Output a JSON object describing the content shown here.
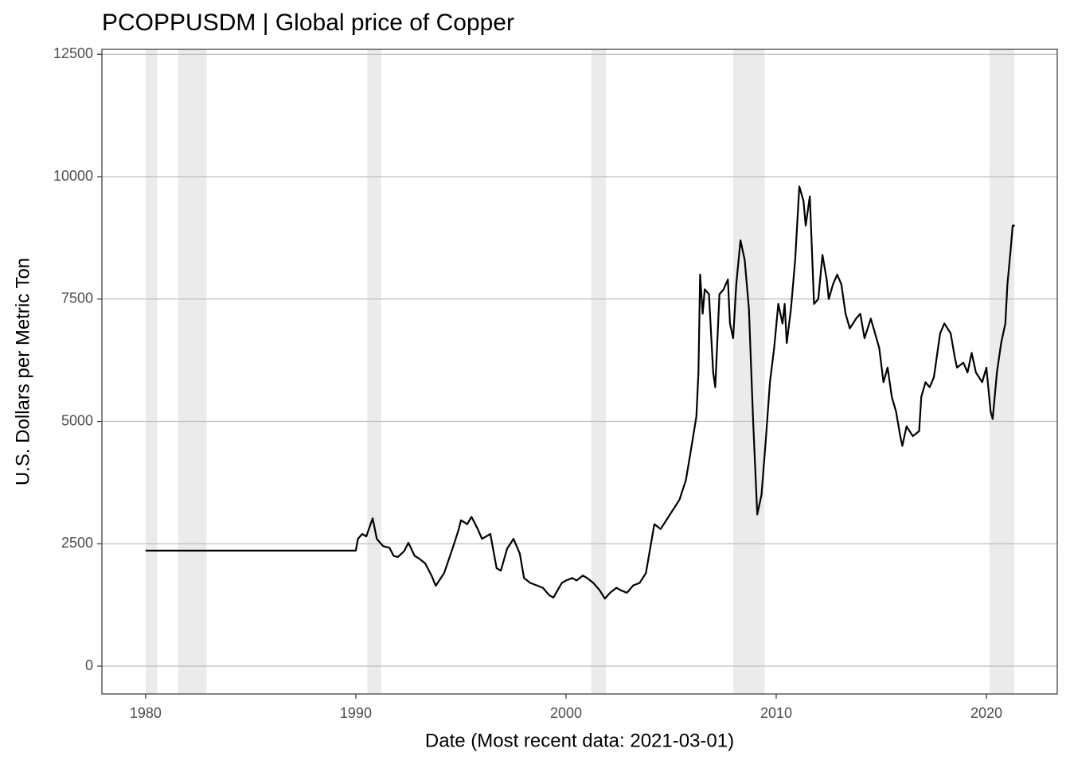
{
  "chart_data": {
    "type": "line",
    "title": "PCOPPUSDM | Global price of Copper",
    "x_label": "Date (Most recent data: 2021-03-01)",
    "y_label": "U.S. Dollars per Metric Ton",
    "x": [
      1980,
      1990,
      1990.1,
      1990.3,
      1990.5,
      1990.8,
      1991.0,
      1991.3,
      1991.6,
      1991.8,
      1992.0,
      1992.3,
      1992.5,
      1992.8,
      1993.0,
      1993.3,
      1993.6,
      1993.8,
      1994.2,
      1994.6,
      1994.9,
      1995.0,
      1995.3,
      1995.5,
      1995.8,
      1996.0,
      1996.4,
      1996.7,
      1996.9,
      1997.2,
      1997.5,
      1997.8,
      1998.0,
      1998.3,
      1998.6,
      1998.9,
      1999.2,
      1999.4,
      1999.6,
      1999.8,
      2000.0,
      2000.3,
      2000.5,
      2000.8,
      2001.0,
      2001.3,
      2001.6,
      2001.85,
      2002.1,
      2002.4,
      2002.6,
      2002.9,
      2003.2,
      2003.5,
      2003.8,
      2004.0,
      2004.2,
      2004.5,
      2004.8,
      2005.1,
      2005.4,
      2005.7,
      2005.9,
      2006.2,
      2006.3,
      2006.38,
      2006.5,
      2006.6,
      2006.8,
      2007.0,
      2007.1,
      2007.3,
      2007.5,
      2007.7,
      2007.8,
      2007.95,
      2008.1,
      2008.3,
      2008.5,
      2008.7,
      2008.9,
      2009.1,
      2009.3,
      2009.5,
      2009.7,
      2009.9,
      2010.1,
      2010.3,
      2010.4,
      2010.5,
      2010.7,
      2010.9,
      2011.1,
      2011.3,
      2011.4,
      2011.6,
      2011.8,
      2012.0,
      2012.2,
      2012.4,
      2012.5,
      2012.7,
      2012.9,
      2013.1,
      2013.3,
      2013.5,
      2013.8,
      2014.0,
      2014.2,
      2014.5,
      2014.7,
      2014.9,
      2015.1,
      2015.3,
      2015.5,
      2015.7,
      2015.9,
      2016.0,
      2016.2,
      2016.5,
      2016.8,
      2016.9,
      2017.1,
      2017.3,
      2017.5,
      2017.8,
      2018.0,
      2018.3,
      2018.5,
      2018.6,
      2018.9,
      2019.1,
      2019.3,
      2019.5,
      2019.8,
      2020.0,
      2020.2,
      2020.3,
      2020.5,
      2020.7,
      2020.9,
      2021.0,
      2021.15,
      2021.25,
      2021.35
    ],
    "values": [
      2360,
      2360,
      2600,
      2700,
      2650,
      3020,
      2600,
      2450,
      2420,
      2250,
      2230,
      2350,
      2520,
      2250,
      2200,
      2100,
      1850,
      1640,
      1900,
      2400,
      2800,
      2980,
      2900,
      3050,
      2800,
      2600,
      2700,
      2000,
      1950,
      2400,
      2600,
      2300,
      1800,
      1700,
      1650,
      1600,
      1450,
      1400,
      1550,
      1700,
      1750,
      1800,
      1750,
      1850,
      1800,
      1700,
      1550,
      1380,
      1500,
      1600,
      1550,
      1500,
      1650,
      1700,
      1900,
      2400,
      2900,
      2800,
      3000,
      3200,
      3400,
      3800,
      4300,
      5100,
      6000,
      8000,
      7200,
      7700,
      7600,
      6000,
      5700,
      7600,
      7700,
      7900,
      7000,
      6700,
      7800,
      8700,
      8300,
      7300,
      5000,
      3100,
      3500,
      4600,
      5800,
      6500,
      7400,
      7000,
      7400,
      6600,
      7300,
      8300,
      9800,
      9500,
      9000,
      9600,
      7400,
      7500,
      8400,
      7900,
      7500,
      7800,
      8000,
      7800,
      7200,
      6900,
      7100,
      7200,
      6700,
      7100,
      6800,
      6500,
      5800,
      6100,
      5500,
      5200,
      4700,
      4500,
      4900,
      4700,
      4800,
      5500,
      5800,
      5700,
      5900,
      6800,
      7000,
      6800,
      6300,
      6100,
      6200,
      6000,
      6400,
      6000,
      5800,
      6100,
      5200,
      5050,
      6000,
      6600,
      7000,
      7800,
      8500,
      9000,
      9000
    ],
    "color": "#000000",
    "recessions": [
      [
        1980.0,
        1980.55
      ],
      [
        1981.55,
        1982.9
      ],
      [
        1990.55,
        1991.2
      ],
      [
        2001.2,
        2001.9
      ],
      [
        2007.95,
        2009.45
      ],
      [
        2020.15,
        2021.33
      ]
    ],
    "recession_color": "#ebebeb",
    "xlim": [
      1977.92,
      2023.37
    ],
    "ylim": [
      -569,
      12602
    ],
    "xticks": [
      1980,
      1990,
      2000,
      2010,
      2020
    ],
    "yticks": [
      0,
      2500,
      5000,
      7500,
      10000,
      12500
    ],
    "grid": true
  }
}
